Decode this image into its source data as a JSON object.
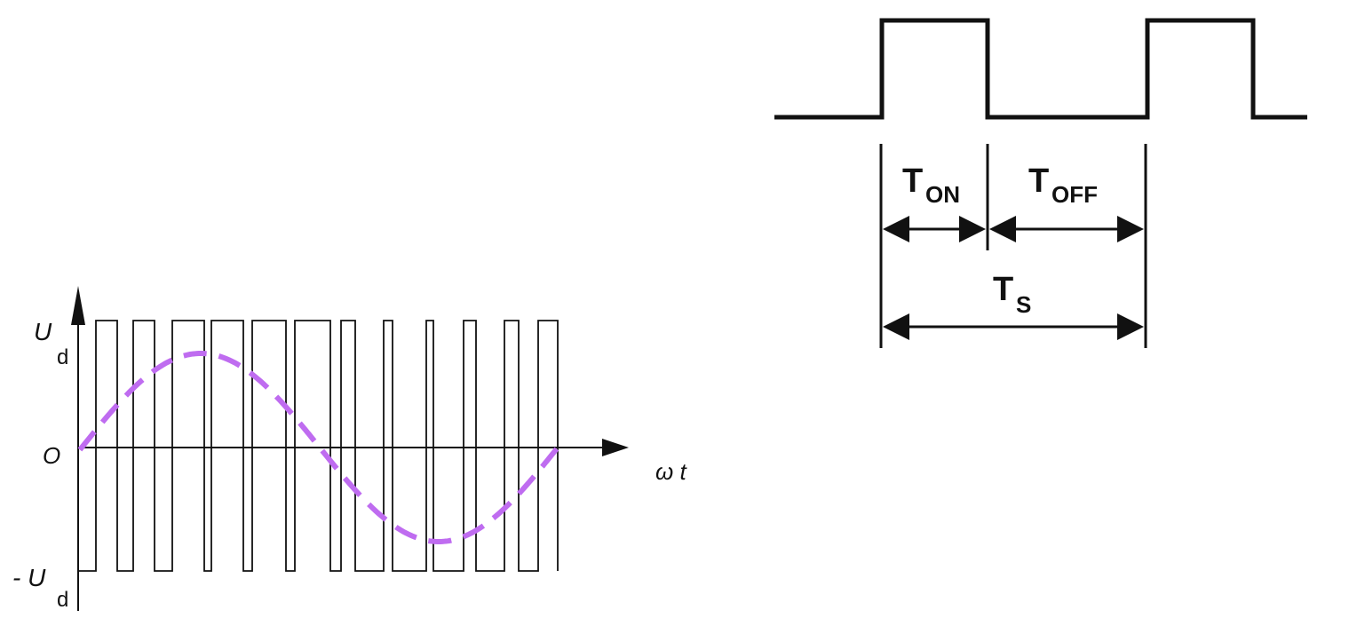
{
  "pwm_plot": {
    "label_ud": "U",
    "label_ud_sub": "d",
    "label_neg_ud": "- U",
    "label_neg_ud_sub": "d",
    "label_origin": "O",
    "label_x": "ω t",
    "pulse_color": "#111111",
    "sine_color": "#bf6cf0"
  },
  "duty_cycle_diagram": {
    "label_ton": "T",
    "label_ton_sub": "ON",
    "label_toff": "T",
    "label_toff_sub": "OFF",
    "label_ts": "T",
    "label_ts_sub": "S",
    "line_color": "#111111"
  }
}
